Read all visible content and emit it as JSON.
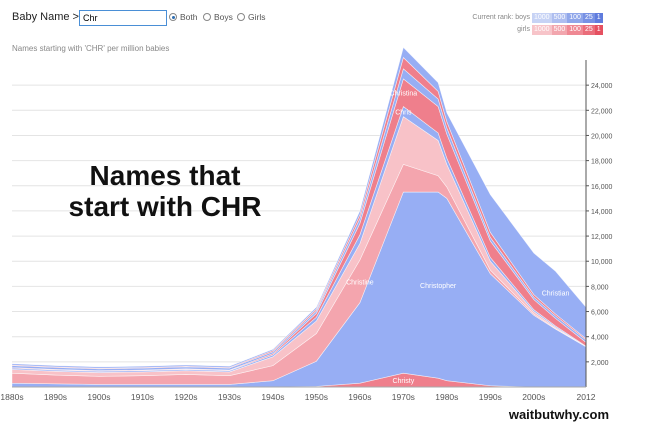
{
  "header": {
    "baby_name_label": "Baby Name >",
    "input_value": "Chr",
    "filters": [
      {
        "label": "Both",
        "selected": true
      },
      {
        "label": "Boys",
        "selected": false
      },
      {
        "label": "Girls",
        "selected": false
      }
    ],
    "current_rank_label": "Current rank:",
    "rank_rows": [
      {
        "label": "boys",
        "cells": [
          "1000",
          "500",
          "100",
          "25",
          "1"
        ],
        "colors": [
          "#c7d3f5",
          "#aebef0",
          "#8fa6ea",
          "#7791e4",
          "#5f7bdd"
        ]
      },
      {
        "label": "girls",
        "cells": [
          "1000",
          "500",
          "100",
          "25",
          "1"
        ],
        "colors": [
          "#f7c4c9",
          "#f2a6ae",
          "#ef8893",
          "#ea6d7a",
          "#e55060"
        ]
      }
    ]
  },
  "subtitle": "Names starting with 'CHR' per million babies",
  "overlay_title_line1": "Names that",
  "overlay_title_line2": "start with CHR",
  "watermark": "waitbutwhy.com",
  "colors": {
    "boys_main": "#97aef4",
    "girls_main": "#f4a5ae",
    "girls_light": "#f8c2c8",
    "girls_dark": "#ef7f8c",
    "christy": "#ef7f8c",
    "grid": "#e4e4e4"
  },
  "chart_data": {
    "type": "area",
    "stacked": true,
    "x": [
      1880,
      1890,
      1900,
      1910,
      1920,
      1930,
      1940,
      1950,
      1960,
      1970,
      1978,
      1980,
      1990,
      2000,
      2005,
      2012
    ],
    "x_tick_labels": [
      "1880s",
      "1890s",
      "1900s",
      "1910s",
      "1920s",
      "1930s",
      "1940s",
      "1950s",
      "1960s",
      "1970s",
      "1980s",
      "1990s",
      "2000s",
      "2012"
    ],
    "y_ticks": [
      "2,000",
      "4,000",
      "6,000",
      "8,000",
      "10,000",
      "12,000",
      "14,000",
      "16,000",
      "18,000",
      "20,000",
      "22,000",
      "24,000"
    ],
    "ylim": [
      0,
      26000
    ],
    "grid": true,
    "series": [
      {
        "name": "Christy",
        "color_key": "christy",
        "values": [
          0,
          0,
          0,
          0,
          0,
          0,
          0,
          50,
          300,
          1100,
          700,
          500,
          100,
          0,
          0,
          0
        ]
      },
      {
        "name": "Christopher",
        "color_key": "boys_main",
        "values": [
          300,
          250,
          200,
          200,
          200,
          200,
          500,
          2000,
          6400,
          14400,
          14800,
          14500,
          8900,
          5700,
          4600,
          3200
        ]
      },
      {
        "name": "Christine",
        "color_key": "girls_main",
        "values": [
          800,
          700,
          650,
          700,
          800,
          700,
          1200,
          2200,
          3400,
          2200,
          1300,
          900,
          300,
          100,
          50,
          0
        ]
      },
      {
        "color_key": "girls_light",
        "values": [
          300,
          300,
          300,
          300,
          300,
          300,
          700,
          1000,
          1300,
          3800,
          2800,
          1800,
          700,
          200,
          100,
          0
        ]
      },
      {
        "name": "Chris",
        "color_key": "boys_main",
        "values": [
          100,
          100,
          100,
          100,
          100,
          100,
          150,
          300,
          700,
          800,
          600,
          500,
          300,
          150,
          100,
          50
        ]
      },
      {
        "name": "Christina",
        "color_key": "girls_dark",
        "values": [
          50,
          50,
          50,
          50,
          50,
          50,
          100,
          300,
          900,
          2200,
          2100,
          1900,
          1300,
          800,
          600,
          300
        ]
      },
      {
        "color_key": "boys_main",
        "values": [
          150,
          150,
          150,
          150,
          150,
          150,
          150,
          200,
          400,
          800,
          600,
          500,
          300,
          200,
          200,
          200
        ]
      },
      {
        "color_key": "girls_dark",
        "values": [
          50,
          50,
          50,
          50,
          50,
          50,
          100,
          150,
          300,
          900,
          600,
          500,
          400,
          200,
          150,
          100
        ]
      },
      {
        "name": "Christian",
        "color_key": "boys_main",
        "values": [
          100,
          100,
          100,
          100,
          100,
          100,
          100,
          150,
          300,
          800,
          700,
          700,
          3000,
          3300,
          3400,
          2500
        ]
      }
    ]
  }
}
